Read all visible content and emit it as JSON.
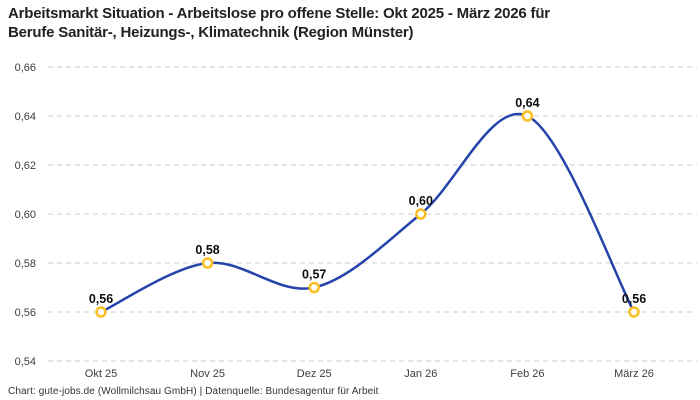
{
  "header": {
    "title_line1": "Arbeitsmarkt Situation - Arbeitslose pro offene Stelle: Okt 2025 - März 2026 für",
    "title_line2": "Berufe Sanitär-, Heizungs-, Klimatechnik (Region Münster)"
  },
  "footer": {
    "credit": "Chart: gute-jobs.de (Wollmilchsau GmbH) | Datenquelle: Bundesagentur für Arbeit"
  },
  "chart_data": {
    "type": "line",
    "title": "Arbeitsmarkt Situation - Arbeitslose pro offene Stelle: Okt 2025 - März 2026 für Berufe Sanitär-, Heizungs-, Klimatechnik (Region Münster)",
    "categories": [
      "Okt 25",
      "Nov 25",
      "Dez 25",
      "Jan 26",
      "Feb 26",
      "März 26"
    ],
    "values": [
      0.56,
      0.58,
      0.57,
      0.6,
      0.64,
      0.56
    ],
    "point_labels": [
      "0,56",
      "0,58",
      "0,57",
      "0,60",
      "0,64",
      "0,56"
    ],
    "xlabel": "",
    "ylabel": "",
    "ylim": [
      0.54,
      0.66
    ],
    "y_ticks": [
      {
        "value": 0.54,
        "label": "0,54"
      },
      {
        "value": 0.56,
        "label": "0,56"
      },
      {
        "value": 0.58,
        "label": "0,58"
      },
      {
        "value": 0.6,
        "label": "0,60"
      },
      {
        "value": 0.62,
        "label": "0,62"
      },
      {
        "value": 0.64,
        "label": "0,64"
      },
      {
        "value": 0.66,
        "label": "0,66"
      }
    ],
    "grid": "horizontal-dashed",
    "legend": "none",
    "line_style": "smooth",
    "colors": {
      "line": "#2443ab",
      "marker_stroke": "#fbbf24",
      "marker_fill": "#ffffff",
      "grid": "#cccccc",
      "point_label": "#0d0d0d",
      "axis_text": "#3d3d3d",
      "title": "#222222",
      "background": "#ffffff"
    }
  }
}
